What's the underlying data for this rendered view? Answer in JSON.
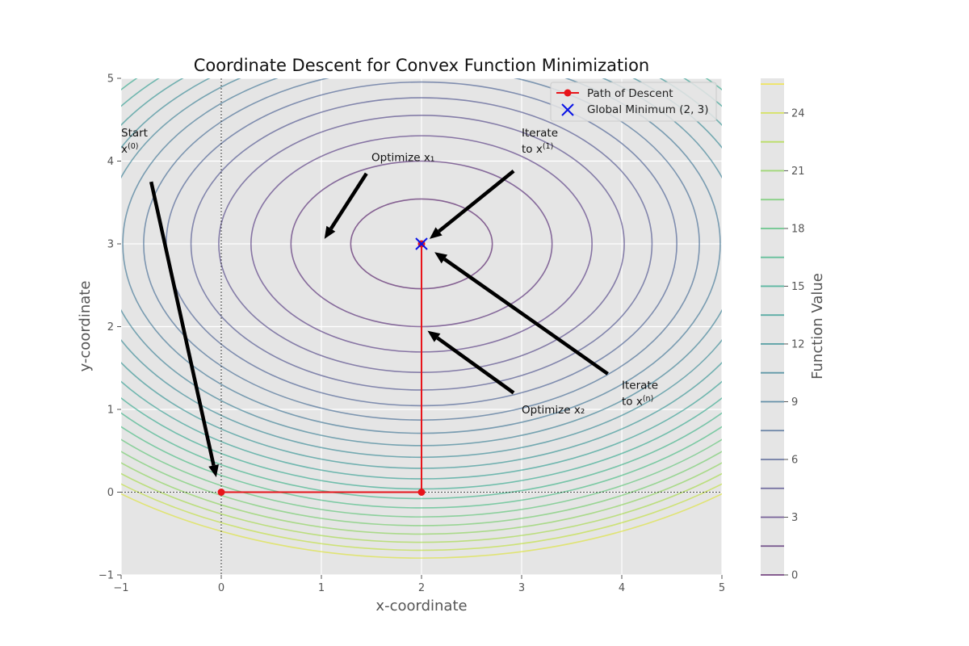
{
  "chart_data": {
    "type": "contour",
    "title": "Coordinate Descent for Convex Function Minimization",
    "xlabel": "x-coordinate",
    "ylabel": "y-coordinate",
    "xlim": [
      -1,
      5
    ],
    "ylim": [
      -1,
      5
    ],
    "xticks": [
      "−1",
      "0",
      "1",
      "2",
      "3",
      "4",
      "5"
    ],
    "yticks": [
      "−1",
      "0",
      "1",
      "2",
      "3",
      "4",
      "5"
    ],
    "x_tick_values": [
      -1,
      0,
      1,
      2,
      3,
      4,
      5
    ],
    "y_tick_values": [
      -1,
      0,
      1,
      2,
      3,
      4,
      5
    ],
    "grid": true,
    "background_color": "#e5e5e5",
    "function": {
      "center": [
        2,
        3
      ],
      "coefficients": [
        1.0,
        1.7
      ],
      "contour_levels": [
        0.5,
        1.7,
        2.9,
        4.1,
        5.3,
        6.5,
        7.7,
        8.9,
        10.1,
        11.3,
        12.5,
        13.7,
        14.9,
        16.1,
        17.3,
        18.5,
        19.7,
        20.9,
        22.1,
        23.3,
        24.5
      ]
    },
    "colormap": "viridis",
    "colorbar": {
      "label": "Function Value",
      "range": [
        0,
        25.8
      ],
      "ticks": [
        "0",
        "3",
        "6",
        "9",
        "12",
        "15",
        "18",
        "21",
        "24"
      ],
      "tick_values": [
        0,
        3,
        6,
        9,
        12,
        15,
        18,
        21,
        24
      ],
      "line_levels": [
        0,
        1.5,
        3,
        4.5,
        6,
        7.5,
        9,
        10.5,
        12,
        13.5,
        15,
        16.5,
        18,
        19.5,
        21,
        22.5,
        24,
        25.5
      ]
    },
    "reference_lines": {
      "x": 0,
      "y": 0
    },
    "series": [
      {
        "name": "Path of Descent",
        "type": "line",
        "color": "#e8141a",
        "x": [
          0,
          2,
          2
        ],
        "y": [
          0,
          0,
          3
        ]
      },
      {
        "name": "Global Minimum (2, 3)",
        "type": "scatter",
        "marker": "x",
        "color": "#0a14e6",
        "x": [
          2
        ],
        "y": [
          3
        ]
      }
    ],
    "legend_position": "top-right",
    "annotations": [
      {
        "lines": [
          "Start",
          "x^(0)"
        ],
        "x": -1,
        "y": 4.25,
        "arrow_from": [
          -0.7,
          3.75
        ],
        "arrow_to": [
          -0.05,
          0.18
        ]
      },
      {
        "lines": [
          "Optimize x₁"
        ],
        "x": 1.5,
        "y": 4.05,
        "arrow_from": [
          1.45,
          3.85
        ],
        "arrow_to": [
          1.03,
          3.06
        ]
      },
      {
        "lines": [
          "Iterate",
          "to x^(1)"
        ],
        "x": 3,
        "y": 4.25,
        "arrow_from": [
          2.92,
          3.88
        ],
        "arrow_to": [
          2.08,
          3.06
        ]
      },
      {
        "lines": [
          "Optimize x₂"
        ],
        "x": 3,
        "y": 1.0,
        "arrow_from": [
          2.92,
          1.2
        ],
        "arrow_to": [
          2.06,
          1.95
        ]
      },
      {
        "lines": [
          "Iterate",
          "to x^(n)"
        ],
        "x": 4,
        "y": 1.2,
        "arrow_from": [
          3.86,
          1.43
        ],
        "arrow_to": [
          2.13,
          2.9
        ]
      }
    ]
  }
}
